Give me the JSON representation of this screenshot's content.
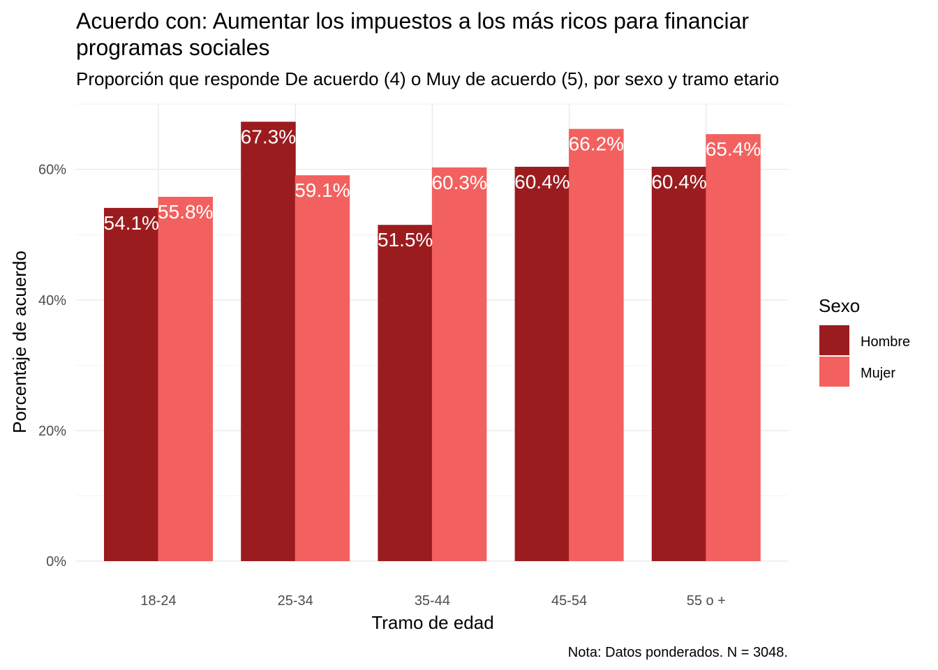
{
  "chart_data": {
    "type": "bar",
    "title_lines": [
      "Acuerdo con: Aumentar los impuestos a los más ricos para financiar",
      "programas sociales"
    ],
    "subtitle": "Proporción que responde De acuerdo (4) o Muy de acuerdo (5), por sexo y tramo etario",
    "xlabel": "Tramo de edad",
    "ylabel": "Porcentaje de acuerdo",
    "caption": "Nota: Datos ponderados. N = 3048.",
    "categories": [
      "18-24",
      "25-34",
      "35-44",
      "45-54",
      "55 o +"
    ],
    "ylim": [
      0,
      70
    ],
    "yticks": [
      0,
      20,
      40,
      60
    ],
    "ytick_labels": [
      "0%",
      "20%",
      "40%",
      "60%"
    ],
    "grid": true,
    "legend": {
      "title": "Sexo",
      "position": "right"
    },
    "series": [
      {
        "name": "Hombre",
        "color": "#9b1c1f",
        "values": [
          54.1,
          67.3,
          51.5,
          60.4,
          60.4
        ],
        "labels": [
          "54.1%",
          "67.3%",
          "51.5%",
          "60.4%",
          "60.4%"
        ]
      },
      {
        "name": "Mujer",
        "color": "#f2615f",
        "values": [
          55.8,
          59.1,
          60.3,
          66.2,
          65.4
        ],
        "labels": [
          "55.8%",
          "59.1%",
          "60.3%",
          "66.2%",
          "65.4%"
        ]
      }
    ]
  }
}
